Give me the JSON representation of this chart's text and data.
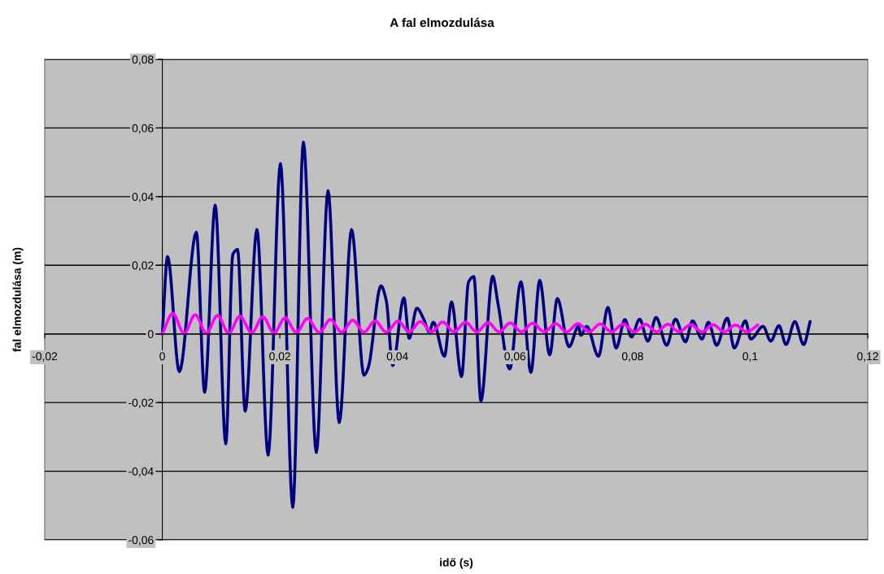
{
  "chart_data": {
    "type": "line",
    "title": "A fal elmozdulása",
    "xlabel": "idő (s)",
    "ylabel": "fal elmozdulása (m)",
    "xlim": [
      -0.02,
      0.12
    ],
    "ylim": [
      -0.06,
      0.08
    ],
    "xticks": [
      {
        "value": -0.02,
        "label": "-0,02"
      },
      {
        "value": 0,
        "label": "0"
      },
      {
        "value": 0.02,
        "label": "0,02"
      },
      {
        "value": 0.04,
        "label": "0,04"
      },
      {
        "value": 0.06,
        "label": "0,06"
      },
      {
        "value": 0.08,
        "label": "0,08"
      },
      {
        "value": 0.1,
        "label": "0,1"
      },
      {
        "value": 0.12,
        "label": "0,12"
      }
    ],
    "yticks": [
      {
        "value": -0.06,
        "label": "-0,06"
      },
      {
        "value": -0.04,
        "label": "-0,04"
      },
      {
        "value": -0.02,
        "label": "-0,02"
      },
      {
        "value": 0,
        "label": "0"
      },
      {
        "value": 0.02,
        "label": "0,02"
      },
      {
        "value": 0.04,
        "label": "0,04"
      },
      {
        "value": 0.06,
        "label": "0,06"
      },
      {
        "value": 0.08,
        "label": "0,08"
      }
    ],
    "grid": "y",
    "marker": "none",
    "line_style": "solid",
    "series": [
      {
        "color": "#000080",
        "x": [
          0,
          0.0009,
          0.0029,
          0.0058,
          0.0072,
          0.009,
          0.0108,
          0.012,
          0.0128,
          0.0141,
          0.0161,
          0.018,
          0.0201,
          0.0222,
          0.024,
          0.0262,
          0.0282,
          0.0301,
          0.0322,
          0.0343,
          0.035,
          0.0372,
          0.0381,
          0.0392,
          0.0411,
          0.042,
          0.0433,
          0.0445,
          0.0454,
          0.0461,
          0.048,
          0.0492,
          0.0509,
          0.0521,
          0.053,
          0.0542,
          0.0562,
          0.0571,
          0.0591,
          0.061,
          0.0627,
          0.0642,
          0.0659,
          0.0672,
          0.0692,
          0.0708,
          0.0712,
          0.0722,
          0.0742,
          0.0758,
          0.0772,
          0.0787,
          0.0798,
          0.0812,
          0.0826,
          0.084,
          0.0858,
          0.0873,
          0.089,
          0.0902,
          0.0918,
          0.0929,
          0.0943,
          0.0961,
          0.0973,
          0.0992,
          0.1001,
          0.1022,
          0.1035,
          0.1049,
          0.1061,
          0.1076,
          0.1091,
          0.1102
        ],
        "values": [
          0,
          0.0225,
          -0.011,
          0.0296,
          -0.017,
          0.0375,
          -0.032,
          0.0232,
          0.0246,
          -0.0225,
          0.0304,
          -0.0353,
          0.0496,
          -0.0505,
          0.0559,
          -0.0345,
          0.0417,
          -0.0258,
          0.0304,
          -0.012,
          -0.01,
          0.014,
          0.0097,
          -0.0092,
          0.0105,
          -0.0013,
          0.0075,
          0.0042,
          0.0006,
          0.0034,
          -0.0065,
          0.0093,
          -0.0124,
          0.0152,
          0.0167,
          -0.0195,
          0.0168,
          0.0089,
          -0.0102,
          0.0152,
          -0.0112,
          0.0156,
          -0.0061,
          0.0103,
          -0.0037,
          0.0022,
          -0.0004,
          0.0022,
          -0.0065,
          0.0077,
          -0.0041,
          0.0042,
          -0.0009,
          0.0043,
          -0.0021,
          0.0048,
          -0.0033,
          0.0043,
          -0.0023,
          0.0038,
          -0.0015,
          0.0034,
          -0.0033,
          0.0046,
          -0.0041,
          0.0038,
          -0.0015,
          0.0022,
          -0.0021,
          0.0024,
          -0.0031,
          0.0036,
          -0.0031,
          0.0036
        ]
      },
      {
        "color": "#ff00ff",
        "x": [
          0,
          0.0018,
          0.0037,
          0.0056,
          0.0075,
          0.0094,
          0.0113,
          0.0132,
          0.0152,
          0.0171,
          0.019,
          0.0209,
          0.0228,
          0.0247,
          0.0267,
          0.0286,
          0.0305,
          0.0324,
          0.0343,
          0.0362,
          0.0381,
          0.0401,
          0.042,
          0.0439,
          0.0458,
          0.0477,
          0.0496,
          0.0516,
          0.0535,
          0.0554,
          0.0573,
          0.0592,
          0.0611,
          0.063,
          0.065,
          0.0669,
          0.0688,
          0.0707,
          0.0726,
          0.0745,
          0.0764,
          0.0784,
          0.0803,
          0.0822,
          0.0841,
          0.086,
          0.0879,
          0.0899,
          0.0918,
          0.0937,
          0.0956,
          0.0975,
          0.0994,
          0.1013
        ],
        "values": [
          0,
          0.006,
          0.0001,
          0.0056,
          0.0002,
          0.0054,
          0.0002,
          0.0052,
          0.0003,
          0.005,
          0.0003,
          0.0047,
          0.0004,
          0.0045,
          0.0004,
          0.0042,
          0.0005,
          0.004,
          0.0005,
          0.0038,
          0.0005,
          0.0037,
          0.0006,
          0.0036,
          0.0006,
          0.0035,
          0.0006,
          0.0034,
          0.0006,
          0.0033,
          0.0006,
          0.0032,
          0.0006,
          0.0031,
          0.0006,
          0.003,
          0.0006,
          0.003,
          0.0006,
          0.0029,
          0.0006,
          0.0029,
          0.0006,
          0.0028,
          0.0006,
          0.0028,
          0.0006,
          0.0027,
          0.0006,
          0.0027,
          0.0006,
          0.0026,
          0.0006,
          0.0026
        ]
      }
    ]
  }
}
